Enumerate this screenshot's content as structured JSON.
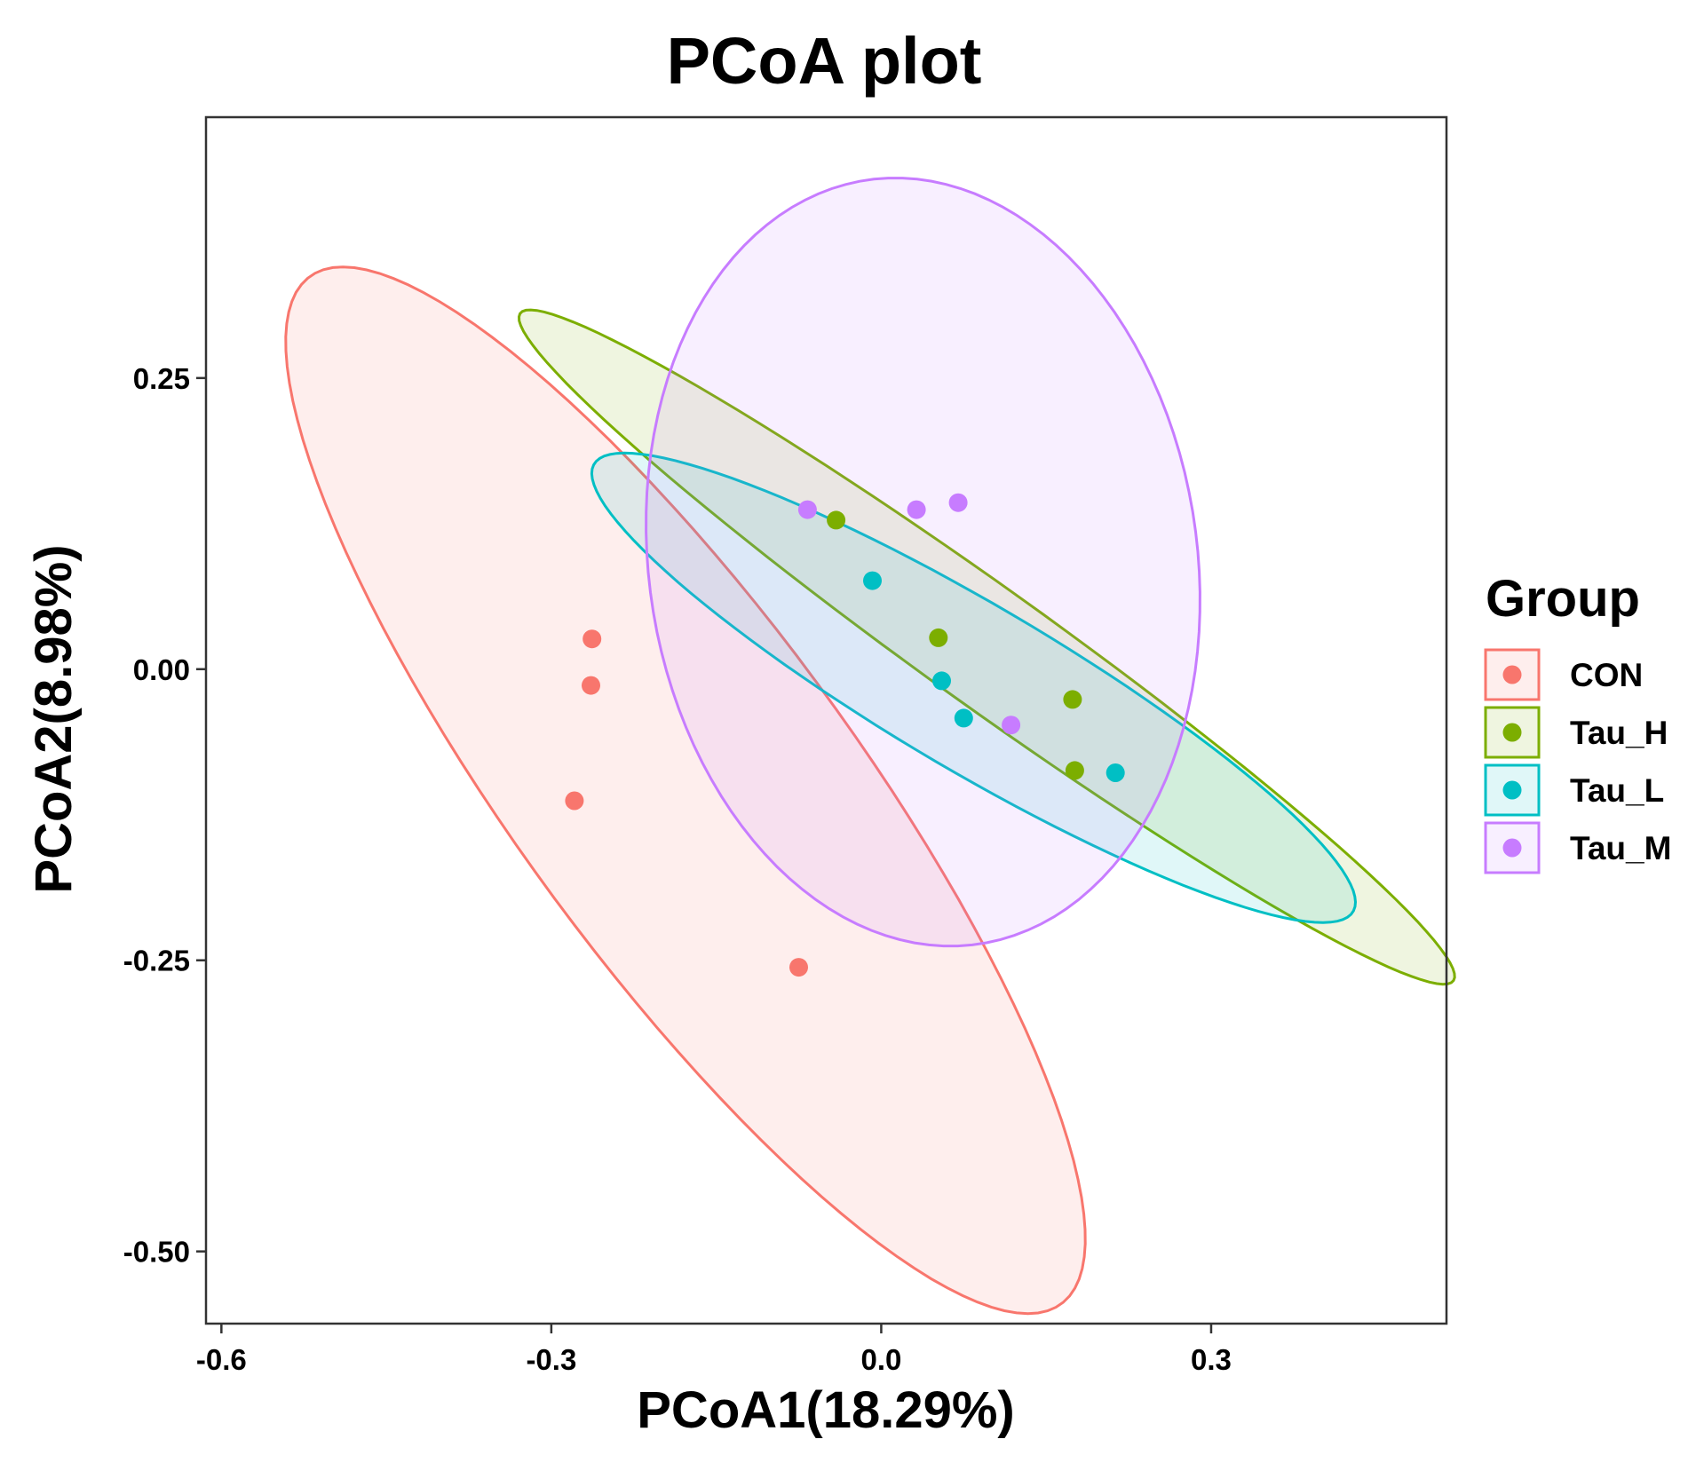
{
  "chart_data": {
    "type": "scatter",
    "title": "PCoA plot",
    "xlabel": "PCoA1(18.29%)",
    "ylabel": "PCoA2(8.98%)",
    "xlim": [
      -0.614,
      0.514
    ],
    "ylim": [
      -0.562,
      0.474
    ],
    "xticks": [
      -0.6,
      -0.3,
      0.0,
      0.3
    ],
    "xtick_labels": [
      "-0.6",
      "-0.3",
      "0.0",
      "0.3"
    ],
    "yticks": [
      0.25,
      0.0,
      -0.25,
      -0.5
    ],
    "ytick_labels": [
      "0.25",
      "0.00",
      "-0.25",
      "-0.50"
    ],
    "grid": false,
    "legend": {
      "title": "Group",
      "position": "right"
    },
    "series": [
      {
        "name": "CON",
        "color": "#F8766D",
        "points": [
          {
            "x": -0.263,
            "y": 0.026
          },
          {
            "x": -0.264,
            "y": -0.014
          },
          {
            "x": -0.279,
            "y": -0.113
          },
          {
            "x": -0.075,
            "y": -0.256
          }
        ],
        "ellipse": {
          "cx": -0.178,
          "cy": -0.104,
          "semi_major": 0.558,
          "semi_minor": 0.151,
          "angle_deg": -52
        }
      },
      {
        "name": "Tau_H",
        "color": "#7CAE00",
        "points": [
          {
            "x": -0.041,
            "y": 0.128
          },
          {
            "x": 0.052,
            "y": 0.027
          },
          {
            "x": 0.174,
            "y": -0.026
          },
          {
            "x": 0.176,
            "y": -0.087
          }
        ],
        "ellipse": {
          "cx": 0.096,
          "cy": 0.019,
          "semi_major": 0.512,
          "semi_minor": 0.052,
          "angle_deg": -34
        }
      },
      {
        "name": "Tau_L",
        "color": "#00BFC4",
        "points": [
          {
            "x": -0.008,
            "y": 0.076
          },
          {
            "x": 0.055,
            "y": -0.01
          },
          {
            "x": 0.075,
            "y": -0.042
          },
          {
            "x": 0.213,
            "y": -0.089
          }
        ],
        "ellipse": {
          "cx": 0.084,
          "cy": -0.016,
          "semi_major": 0.395,
          "semi_minor": 0.072,
          "angle_deg": -29
        }
      },
      {
        "name": "Tau_M",
        "color": "#C77CFF",
        "points": [
          {
            "x": -0.067,
            "y": 0.137
          },
          {
            "x": 0.032,
            "y": 0.137
          },
          {
            "x": 0.07,
            "y": 0.143
          },
          {
            "x": 0.118,
            "y": -0.048
          }
        ],
        "ellipse": {
          "cx": 0.038,
          "cy": 0.092,
          "semi_major": 0.332,
          "semi_minor": 0.249,
          "angle_deg": -80
        }
      }
    ]
  }
}
